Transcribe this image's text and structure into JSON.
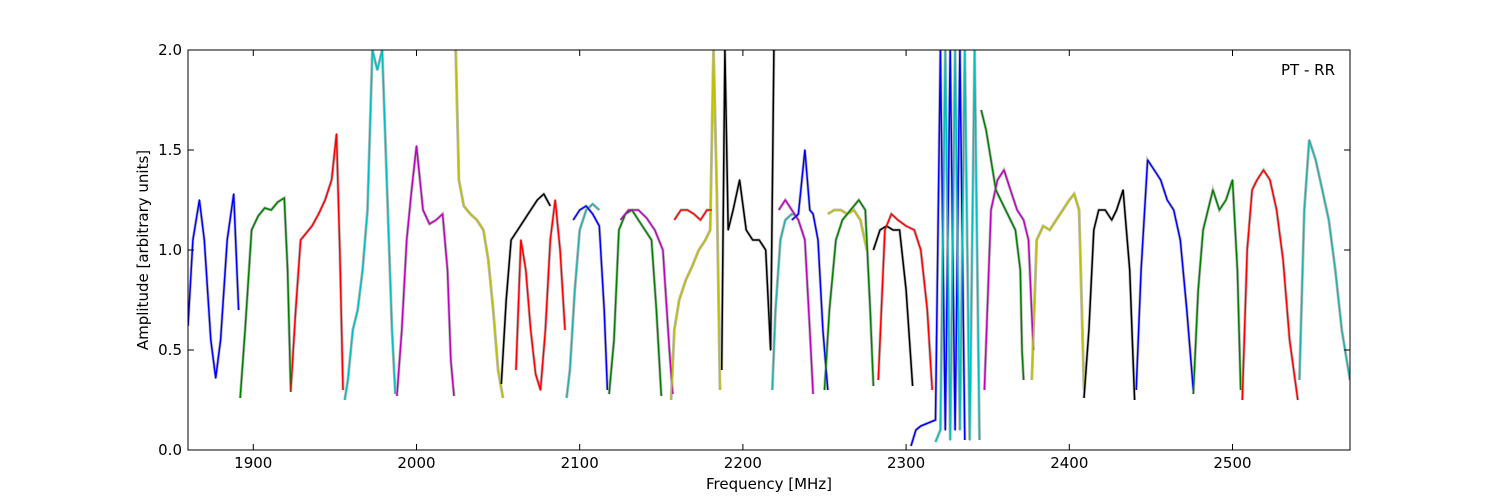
{
  "chart_data": {
    "type": "line",
    "title": "",
    "annotation": "PT - RR",
    "xlabel": "Frequency [MHz]",
    "ylabel": "Amplitude [arbitrary units]",
    "xlim": [
      1860,
      2572
    ],
    "ylim": [
      0.0,
      2.0
    ],
    "xticks": [
      1900,
      2000,
      2100,
      2200,
      2300,
      2400,
      2500
    ],
    "xtick_labels": [
      "1900",
      "2000",
      "2100",
      "2200",
      "2300",
      "2400",
      "2500"
    ],
    "yticks": [
      0.0,
      0.5,
      1.0,
      1.5,
      2.0
    ],
    "ytick_labels": [
      "0.0",
      "0.5",
      "1.0",
      "1.5",
      "2.0"
    ],
    "grid": false,
    "background_color": "#bfbfbf",
    "series": [
      {
        "color": "#0000ff",
        "x": [
          1860,
          1863,
          1867,
          1870,
          1874,
          1877,
          1880,
          1884,
          1888,
          1891
        ],
        "y": [
          0.62,
          1.05,
          1.25,
          1.05,
          0.55,
          0.36,
          0.55,
          1.05,
          1.28,
          0.7
        ]
      },
      {
        "color": "#008000",
        "x": [
          1892,
          1895,
          1899,
          1903,
          1907,
          1911,
          1915,
          1919,
          1921,
          1923
        ],
        "y": [
          0.26,
          0.6,
          1.1,
          1.17,
          1.21,
          1.2,
          1.24,
          1.26,
          0.9,
          0.29
        ]
      },
      {
        "color": "#ff0000",
        "x": [
          1923,
          1926,
          1929,
          1932,
          1936,
          1940,
          1944,
          1948,
          1951,
          1953,
          1955
        ],
        "y": [
          0.3,
          0.7,
          1.05,
          1.08,
          1.12,
          1.18,
          1.25,
          1.35,
          1.58,
          1.0,
          0.3
        ]
      },
      {
        "color": "#00bfbf",
        "x": [
          1956,
          1958,
          1961,
          1964,
          1967,
          1970,
          1973,
          1976,
          1979,
          1982,
          1985,
          1987
        ],
        "y": [
          0.25,
          0.35,
          0.6,
          0.7,
          0.9,
          1.2,
          2.0,
          1.9,
          2.0,
          1.3,
          0.6,
          0.28
        ]
      },
      {
        "color": "#bf00bf",
        "x": [
          1988,
          1991,
          1994,
          1997,
          2000,
          2004,
          2008,
          2012,
          2016,
          2019,
          2021,
          2023
        ],
        "y": [
          0.27,
          0.6,
          1.05,
          1.3,
          1.52,
          1.2,
          1.13,
          1.15,
          1.18,
          0.9,
          0.45,
          0.27
        ]
      },
      {
        "color": "#bfbf00",
        "x": [
          2024,
          2026,
          2029,
          2033,
          2037,
          2041,
          2044,
          2047,
          2050,
          2053
        ],
        "y": [
          2.0,
          1.35,
          1.22,
          1.18,
          1.15,
          1.1,
          0.95,
          0.7,
          0.4,
          0.26
        ]
      },
      {
        "color": "#000000",
        "x": [
          2052,
          2055,
          2058,
          2062,
          2066,
          2070,
          2074,
          2078,
          2082
        ],
        "y": [
          0.33,
          0.75,
          1.05,
          1.1,
          1.15,
          1.2,
          1.25,
          1.28,
          1.22
        ]
      },
      {
        "color": "#ff0000",
        "x": [
          2061,
          2064,
          2067,
          2070,
          2073,
          2076,
          2079,
          2082,
          2085,
          2088,
          2091
        ],
        "y": [
          0.4,
          1.05,
          0.9,
          0.6,
          0.38,
          0.3,
          0.6,
          1.05,
          1.25,
          1.0,
          0.6
        ]
      },
      {
        "color": "#20b2aa",
        "x": [
          2092,
          2094,
          2097,
          2100,
          2104,
          2108,
          2112
        ],
        "y": [
          0.26,
          0.4,
          0.8,
          1.1,
          1.2,
          1.23,
          1.2
        ]
      },
      {
        "color": "#0000ff",
        "x": [
          2096,
          2100,
          2104,
          2108,
          2112,
          2115,
          2117
        ],
        "y": [
          1.15,
          1.2,
          1.22,
          1.18,
          1.12,
          0.7,
          0.3
        ]
      },
      {
        "color": "#008000",
        "x": [
          2118,
          2121,
          2124,
          2128,
          2132,
          2136,
          2140,
          2144,
          2147,
          2150
        ],
        "y": [
          0.28,
          0.55,
          1.1,
          1.18,
          1.2,
          1.15,
          1.1,
          1.05,
          0.7,
          0.27
        ]
      },
      {
        "color": "#bf00bf",
        "x": [
          2125,
          2130,
          2136,
          2141,
          2146,
          2151,
          2155,
          2157
        ],
        "y": [
          1.15,
          1.2,
          1.2,
          1.16,
          1.1,
          1.0,
          0.5,
          0.28
        ]
      },
      {
        "color": "#bfbf00",
        "x": [
          2156,
          2158,
          2161,
          2165,
          2169,
          2173,
          2177,
          2180,
          2182,
          2184,
          2186
        ],
        "y": [
          0.25,
          0.6,
          0.75,
          0.85,
          0.92,
          1.0,
          1.05,
          1.1,
          2.0,
          1.3,
          0.3
        ]
      },
      {
        "color": "#ff0000",
        "x": [
          2158,
          2162,
          2166,
          2170,
          2174,
          2178,
          2181
        ],
        "y": [
          1.15,
          1.2,
          1.2,
          1.18,
          1.15,
          1.2,
          1.2
        ]
      },
      {
        "color": "#000000",
        "x": [
          2187,
          2189,
          2191,
          2194,
          2198,
          2202,
          2206,
          2210,
          2214,
          2217,
          2219
        ],
        "y": [
          0.4,
          2.0,
          1.1,
          1.2,
          1.35,
          1.1,
          1.05,
          1.05,
          1.0,
          0.5,
          2.0
        ]
      },
      {
        "color": "#20b2aa",
        "x": [
          2218,
          2220,
          2223,
          2226,
          2230,
          2234
        ],
        "y": [
          0.3,
          0.7,
          1.05,
          1.15,
          1.18,
          1.17
        ]
      },
      {
        "color": "#bf00bf",
        "x": [
          2222,
          2226,
          2230,
          2234,
          2238,
          2241,
          2243
        ],
        "y": [
          1.2,
          1.25,
          1.2,
          1.15,
          1.05,
          0.6,
          0.28
        ]
      },
      {
        "color": "#0000ff",
        "x": [
          2230,
          2234,
          2238,
          2241,
          2243,
          2246,
          2249,
          2252
        ],
        "y": [
          1.15,
          1.18,
          1.5,
          1.2,
          1.18,
          1.05,
          0.6,
          0.3
        ]
      },
      {
        "color": "#bfbf00",
        "x": [
          2252,
          2256,
          2260,
          2264,
          2268,
          2272,
          2276
        ],
        "y": [
          1.18,
          1.2,
          1.2,
          1.18,
          1.2,
          1.15,
          1.0
        ]
      },
      {
        "color": "#008000",
        "x": [
          2250,
          2253,
          2257,
          2261,
          2266,
          2271,
          2275,
          2278,
          2280
        ],
        "y": [
          0.3,
          0.7,
          1.05,
          1.15,
          1.2,
          1.25,
          1.2,
          0.7,
          0.32
        ]
      },
      {
        "color": "#000000",
        "x": [
          2280,
          2284,
          2288,
          2292,
          2296,
          2300,
          2304
        ],
        "y": [
          1.0,
          1.1,
          1.12,
          1.1,
          1.1,
          0.8,
          0.32
        ]
      },
      {
        "color": "#ff0000",
        "x": [
          2283,
          2287,
          2291,
          2295,
          2300,
          2305,
          2309,
          2313,
          2316
        ],
        "y": [
          0.35,
          1.1,
          1.18,
          1.15,
          1.12,
          1.1,
          1.0,
          0.7,
          0.3
        ]
      },
      {
        "color": "#0000ff",
        "x": [
          2303,
          2306,
          2309,
          2312,
          2315,
          2318,
          2321,
          2324,
          2327,
          2330,
          2333,
          2336
        ],
        "y": [
          0.02,
          0.1,
          0.12,
          0.13,
          0.14,
          0.15,
          2.0,
          0.1,
          2.0,
          0.1,
          2.0,
          0.05
        ]
      },
      {
        "color": "#00bfbf",
        "x": [
          2318,
          2321,
          2324,
          2327,
          2330,
          2333,
          2336,
          2339,
          2342,
          2345
        ],
        "y": [
          0.04,
          0.1,
          2.0,
          0.05,
          2.0,
          0.1,
          2.0,
          0.05,
          2.0,
          0.05
        ]
      },
      {
        "color": "#bf00bf",
        "x": [
          2348,
          2352,
          2356,
          2360,
          2364,
          2368,
          2372,
          2375,
          2378
        ],
        "y": [
          0.3,
          1.2,
          1.35,
          1.4,
          1.3,
          1.2,
          1.15,
          1.05,
          0.5
        ]
      },
      {
        "color": "#008000",
        "x": [
          2346,
          2349,
          2352,
          2355,
          2358,
          2361,
          2364,
          2367,
          2370,
          2371,
          2372
        ],
        "y": [
          1.7,
          1.6,
          1.45,
          1.3,
          1.25,
          1.2,
          1.15,
          1.1,
          0.9,
          0.5,
          0.35
        ]
      },
      {
        "color": "#bfbf00",
        "x": [
          2377,
          2380,
          2384,
          2388,
          2392,
          2396,
          2400,
          2403,
          2406,
          2409
        ],
        "y": [
          0.35,
          1.05,
          1.12,
          1.1,
          1.15,
          1.2,
          1.25,
          1.28,
          1.2,
          0.3
        ]
      },
      {
        "color": "#000000",
        "x": [
          2409,
          2412,
          2415,
          2418,
          2422,
          2426,
          2429,
          2433,
          2437,
          2440
        ],
        "y": [
          0.26,
          0.6,
          1.1,
          1.2,
          1.2,
          1.15,
          1.2,
          1.3,
          0.9,
          0.25
        ]
      },
      {
        "color": "#0000ff",
        "x": [
          2441,
          2444,
          2448,
          2452,
          2456,
          2460,
          2464,
          2468,
          2472,
          2476
        ],
        "y": [
          0.3,
          0.9,
          1.45,
          1.4,
          1.35,
          1.25,
          1.2,
          1.05,
          0.7,
          0.3
        ]
      },
      {
        "color": "#008000",
        "x": [
          2476,
          2479,
          2482,
          2485,
          2488,
          2492,
          2496,
          2500,
          2503,
          2505
        ],
        "y": [
          0.28,
          0.8,
          1.1,
          1.2,
          1.3,
          1.2,
          1.25,
          1.35,
          0.9,
          0.3
        ]
      },
      {
        "color": "#ff0000",
        "x": [
          2506,
          2509,
          2512,
          2515,
          2519,
          2523,
          2527,
          2531,
          2535,
          2540
        ],
        "y": [
          0.25,
          1.0,
          1.3,
          1.35,
          1.4,
          1.35,
          1.2,
          0.95,
          0.55,
          0.25
        ]
      },
      {
        "color": "#20b2aa",
        "x": [
          2541,
          2544,
          2547,
          2551,
          2555,
          2559,
          2563,
          2567,
          2572
        ],
        "y": [
          0.35,
          1.2,
          1.55,
          1.45,
          1.3,
          1.15,
          0.9,
          0.6,
          0.35
        ]
      }
    ]
  }
}
